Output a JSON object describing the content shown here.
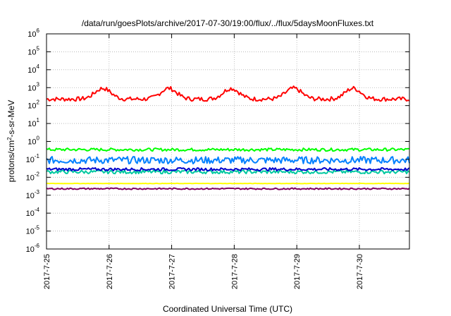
{
  "chart_data": {
    "type": "line",
    "title": "/data/run/goesPlots/archive/2017-07-30/19:00/flux/../flux/5daysMoonFluxes.txt",
    "xlabel": "Coordinated Universal Time (UTC)",
    "ylabel_parts": {
      "pre": "protons/cm",
      "sup": "2",
      "post": "-s-sr-MeV"
    },
    "y_scale": "log",
    "ylim_exp": [
      -6,
      6
    ],
    "ytick_base": "10",
    "ytick_exps": [
      "-6",
      "-5",
      "-4",
      "-3",
      "-2",
      "-1",
      "0",
      "1",
      "2",
      "3",
      "4",
      "5",
      "6"
    ],
    "xlim_days": [
      25,
      30.8
    ],
    "xticks": [
      {
        "label": "2017-7-25",
        "day": 25
      },
      {
        "label": "2017-7-26",
        "day": 26
      },
      {
        "label": "2017-7-27",
        "day": 27
      },
      {
        "label": "2017-7-28",
        "day": 28
      },
      {
        "label": "2017-7-29",
        "day": 29
      },
      {
        "label": "2017-7-30",
        "day": 30
      }
    ],
    "grid": true,
    "series": [
      {
        "color": "#ff0000",
        "profile": "peaks",
        "base": 230,
        "amp": 0.6,
        "noise": 0.12,
        "peaks": [
          25.9,
          26.95,
          27.95,
          28.95,
          29.9
        ]
      },
      {
        "color": "#00ff00",
        "profile": "flat",
        "base": 0.35,
        "noise": 0.08
      },
      {
        "color": "#0080ff",
        "profile": "flat",
        "base": 0.09,
        "noise": 0.2
      },
      {
        "color": "#00c8a0",
        "profile": "flat",
        "base": 0.02,
        "noise": 0.1
      },
      {
        "color": "#0000cc",
        "profile": "flat",
        "base": 0.028,
        "noise": 0.08
      },
      {
        "color": "#ffff00",
        "profile": "flat",
        "base": 0.0045,
        "noise": 0.01
      },
      {
        "color": "#800060",
        "profile": "flat",
        "base": 0.0023,
        "noise": 0.04
      }
    ]
  }
}
